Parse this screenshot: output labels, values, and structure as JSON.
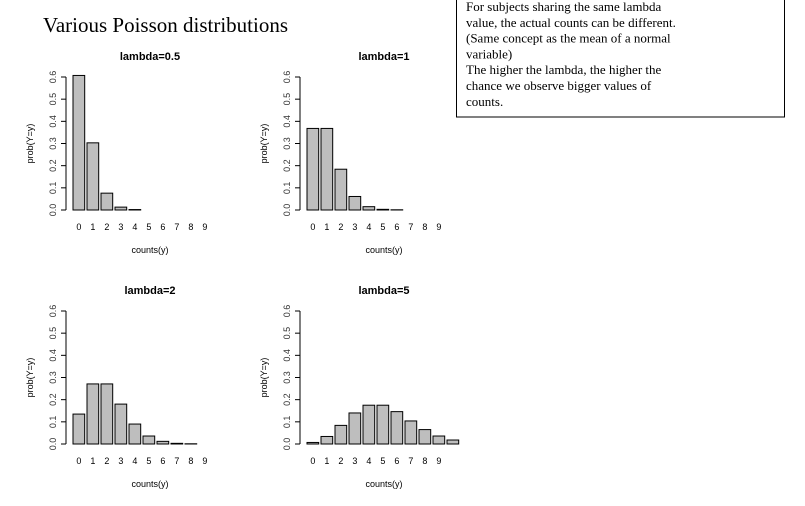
{
  "title": "Various Poisson distributions",
  "note": [
    "For subjects sharing the same lambda",
    "value, the actual counts can be different.",
    "(Same concept as the mean of a normal",
    "variable)",
    "The higher the lambda, the higher the",
    "chance we observe bigger values of",
    "counts."
  ],
  "chart_data": [
    {
      "type": "bar",
      "title": "lambda=0.5",
      "x_label": "counts(y)",
      "y_label": "prob(Y=y)",
      "color": "#bebebe",
      "categories": [
        "0",
        "1",
        "2",
        "3",
        "4",
        "5",
        "6",
        "7",
        "8",
        "9",
        null
      ],
      "values": [
        0.607,
        0.303,
        0.076,
        0.013,
        0.002,
        0,
        0,
        0,
        0,
        0,
        0
      ],
      "ylim": [
        0,
        0.6
      ],
      "yticks": [
        {
          "value": 0,
          "label": "0.0"
        },
        0.1,
        0.2,
        0.3,
        0.4,
        0.5,
        0.6
      ]
    },
    {
      "type": "bar",
      "title": "lambda=1",
      "x_label": "counts(y)",
      "y_label": "prob(Y=y)",
      "color": "#bebebe",
      "categories": [
        "0",
        "1",
        "2",
        "3",
        "4",
        "5",
        "6",
        "7",
        "8",
        "9",
        null
      ],
      "values": [
        0.368,
        0.368,
        0.184,
        0.061,
        0.015,
        0.003,
        0.001,
        0,
        0,
        0,
        0
      ],
      "ylim": [
        0,
        0.6
      ],
      "yticks": [
        {
          "value": 0,
          "label": "0.0"
        },
        0.1,
        0.2,
        0.3,
        0.4,
        0.5,
        0.6
      ]
    },
    {
      "type": "bar",
      "title": "lambda=2",
      "x_label": "counts(y)",
      "y_label": "prob(Y=y)",
      "color": "#bebebe",
      "categories": [
        "0",
        "1",
        "2",
        "3",
        "4",
        "5",
        "6",
        "7",
        "8",
        "9",
        null
      ],
      "values": [
        0.135,
        0.271,
        0.271,
        0.18,
        0.09,
        0.036,
        0.012,
        0.003,
        0.001,
        0,
        0
      ],
      "ylim": [
        0,
        0.6
      ],
      "yticks": [
        {
          "value": 0,
          "label": "0.0"
        },
        0.1,
        0.2,
        0.3,
        0.4,
        0.5,
        0.6
      ]
    },
    {
      "type": "bar",
      "title": "lambda=5",
      "x_label": "counts(y)",
      "y_label": "prob(Y=y)",
      "color": "#bebebe",
      "categories": [
        "0",
        "1",
        "2",
        "3",
        "4",
        "5",
        "6",
        "7",
        "8",
        "9",
        null
      ],
      "values": [
        0.007,
        0.034,
        0.084,
        0.14,
        0.175,
        0.175,
        0.146,
        0.104,
        0.065,
        0.036,
        0.018
      ],
      "ylim": [
        0,
        0.6
      ],
      "yticks": [
        {
          "value": 0,
          "label": "0.0"
        },
        0.1,
        0.2,
        0.3,
        0.4,
        0.5,
        0.6
      ]
    }
  ]
}
